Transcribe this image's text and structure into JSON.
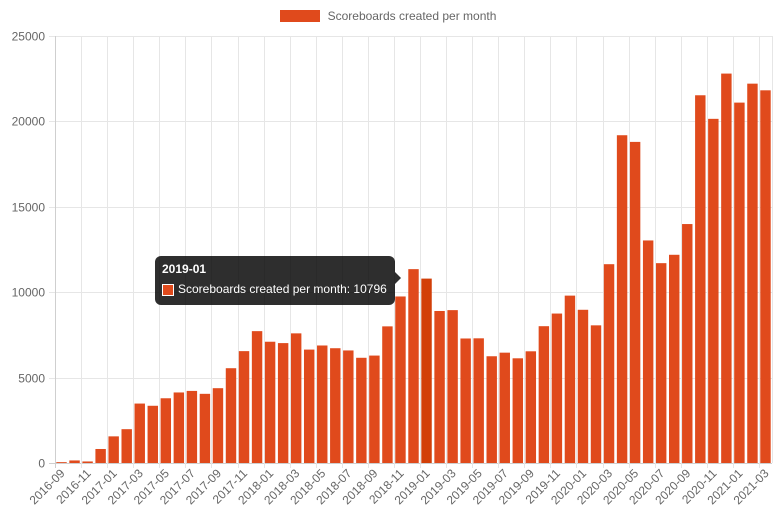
{
  "chart_data": {
    "type": "bar",
    "title": "",
    "xlabel": "",
    "ylabel": "",
    "ylim": [
      0,
      25000
    ],
    "yticks": [
      0,
      5000,
      10000,
      15000,
      20000,
      25000
    ],
    "grid": true,
    "legend_position": "top-center",
    "colors": {
      "bar": "#e04a1c",
      "bar_active": "#d23f08",
      "grid": "#e6e6e6",
      "axis": "#cfcfcf",
      "text": "#666666"
    },
    "categories": [
      "2016-09",
      "2016-10",
      "2016-11",
      "2016-12",
      "2017-01",
      "2017-02",
      "2017-03",
      "2017-04",
      "2017-05",
      "2017-06",
      "2017-07",
      "2017-08",
      "2017-09",
      "2017-10",
      "2017-11",
      "2017-12",
      "2018-01",
      "2018-02",
      "2018-03",
      "2018-04",
      "2018-05",
      "2018-06",
      "2018-07",
      "2018-08",
      "2018-09",
      "2018-10",
      "2018-11",
      "2018-12",
      "2019-01",
      "2019-02",
      "2019-03",
      "2019-04",
      "2019-05",
      "2019-06",
      "2019-07",
      "2019-08",
      "2019-09",
      "2019-10",
      "2019-11",
      "2019-12",
      "2020-01",
      "2020-02",
      "2020-03",
      "2020-04",
      "2020-05",
      "2020-06",
      "2020-07",
      "2020-08",
      "2020-09",
      "2020-10",
      "2020-11",
      "2020-12",
      "2021-01",
      "2021-02",
      "2021-03"
    ],
    "x_tick_labels": [
      "2016-09",
      "2016-11",
      "2017-01",
      "2017-03",
      "2017-05",
      "2017-07",
      "2017-09",
      "2017-11",
      "2018-01",
      "2018-03",
      "2018-05",
      "2018-07",
      "2018-09",
      "2018-11",
      "2019-01",
      "2019-03",
      "2019-05",
      "2019-07",
      "2019-09",
      "2019-11",
      "2020-01",
      "2020-03",
      "2020-05",
      "2020-07",
      "2020-09",
      "2020-11",
      "2021-01",
      "2021-03"
    ],
    "series": [
      {
        "name": "Scoreboards created per month",
        "values": [
          50,
          150,
          90,
          820,
          1560,
          1980,
          3480,
          3350,
          3790,
          4130,
          4220,
          4050,
          4380,
          5550,
          6550,
          7720,
          7100,
          7020,
          7590,
          6640,
          6880,
          6720,
          6590,
          6160,
          6290,
          8000,
          9750,
          11350,
          10796,
          8900,
          8950,
          7290,
          7300,
          6250,
          6460,
          6130,
          6540,
          8010,
          8750,
          9800,
          8970,
          8060,
          11640,
          19190,
          18800,
          13030,
          11700,
          12190,
          13990,
          21530,
          20150,
          22800,
          21100,
          22210,
          21820
        ]
      }
    ],
    "active_index": 28
  },
  "tooltip": {
    "title": "2019-01",
    "label": "Scoreboards created per month: 10796"
  }
}
